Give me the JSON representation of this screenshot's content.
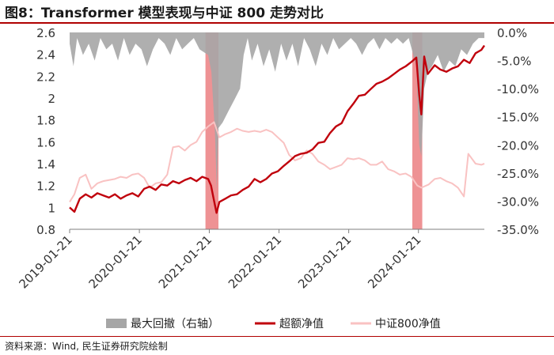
{
  "title": "图8：Transformer 模型表现与中证 800 走势对比",
  "source": "资料来源：Wind, 民生证券研究院绘制",
  "colors": {
    "excess": "#c0000c",
    "index": "#f9c2c2",
    "drawdown": "#a6a6a6",
    "highlight": "#e8686b",
    "title_rule": "#b00000"
  },
  "chart_data": {
    "type": "line",
    "y_left": {
      "ticks": [
        "2.6",
        "2.4",
        "2.2",
        "2",
        "1.8",
        "1.6",
        "1.4",
        "1.2",
        "1",
        "0.8"
      ],
      "range": [
        0.8,
        2.6
      ]
    },
    "y_right": {
      "ticks": [
        "0.0%",
        "-5.0%",
        "-10.0%",
        "-15.0%",
        "-20.0%",
        "-25.0%",
        "-30.0%",
        "-35.0%"
      ],
      "range": [
        -0.35,
        0
      ]
    },
    "x_ticks": [
      "2019-01-21",
      "2020-01-21",
      "2021-01-21",
      "2022-01-21",
      "2023-01-21",
      "2024-01-21"
    ],
    "x_range": [
      "2019-01-21",
      "2024-12-31"
    ],
    "highlight_periods": [
      [
        "2021-01-01",
        "2021-03-10"
      ],
      [
        "2023-12-20",
        "2024-02-10"
      ]
    ],
    "legend": [
      "最大回撤（右轴）",
      "超额净值",
      "中证800净值"
    ],
    "series": [
      {
        "name": "超额净值",
        "axis": "left",
        "x": [
          "2019-01-21",
          "2019-02-15",
          "2019-03-15",
          "2019-04-15",
          "2019-05-15",
          "2019-06-15",
          "2019-07-15",
          "2019-08-15",
          "2019-09-15",
          "2019-10-15",
          "2019-11-15",
          "2019-12-15",
          "2020-01-15",
          "2020-02-15",
          "2020-03-15",
          "2020-04-15",
          "2020-05-15",
          "2020-06-15",
          "2020-07-15",
          "2020-08-15",
          "2020-09-15",
          "2020-10-15",
          "2020-11-15",
          "2020-12-15",
          "2021-01-15",
          "2021-01-30",
          "2021-02-15",
          "2021-02-28",
          "2021-03-15",
          "2021-04-15",
          "2021-05-15",
          "2021-06-15",
          "2021-07-15",
          "2021-08-15",
          "2021-09-15",
          "2021-10-15",
          "2021-11-15",
          "2021-12-15",
          "2022-01-15",
          "2022-02-15",
          "2022-03-15",
          "2022-04-15",
          "2022-05-15",
          "2022-06-15",
          "2022-07-15",
          "2022-08-15",
          "2022-09-15",
          "2022-10-15",
          "2022-11-15",
          "2022-12-15",
          "2023-01-15",
          "2023-02-15",
          "2023-03-15",
          "2023-04-15",
          "2023-05-15",
          "2023-06-15",
          "2023-07-15",
          "2023-08-15",
          "2023-09-15",
          "2023-10-15",
          "2023-11-15",
          "2023-12-15",
          "2024-01-10",
          "2024-01-25",
          "2024-02-05",
          "2024-02-20",
          "2024-03-10",
          "2024-04-15",
          "2024-05-15",
          "2024-06-15",
          "2024-07-15",
          "2024-08-15",
          "2024-09-15",
          "2024-10-15",
          "2024-11-15",
          "2024-12-15",
          "2024-12-31"
        ],
        "values": [
          1.0,
          0.96,
          1.08,
          1.12,
          1.09,
          1.13,
          1.11,
          1.09,
          1.12,
          1.08,
          1.11,
          1.13,
          1.1,
          1.17,
          1.19,
          1.16,
          1.21,
          1.2,
          1.24,
          1.22,
          1.25,
          1.27,
          1.24,
          1.28,
          1.26,
          1.2,
          1.06,
          0.95,
          1.05,
          1.08,
          1.11,
          1.12,
          1.16,
          1.19,
          1.26,
          1.23,
          1.26,
          1.31,
          1.33,
          1.38,
          1.42,
          1.47,
          1.49,
          1.5,
          1.53,
          1.59,
          1.6,
          1.68,
          1.74,
          1.77,
          1.88,
          1.95,
          2.02,
          2.03,
          2.08,
          2.13,
          2.15,
          2.18,
          2.22,
          2.26,
          2.29,
          2.33,
          2.37,
          2.03,
          1.85,
          2.38,
          2.22,
          2.3,
          2.26,
          2.24,
          2.27,
          2.29,
          2.35,
          2.32,
          2.41,
          2.44,
          2.48
        ]
      },
      {
        "name": "中证800净值",
        "axis": "left",
        "x": [
          "2019-01-21",
          "2019-02-15",
          "2019-03-15",
          "2019-04-15",
          "2019-05-15",
          "2019-06-15",
          "2019-07-15",
          "2019-08-15",
          "2019-09-15",
          "2019-10-15",
          "2019-11-15",
          "2019-12-15",
          "2020-01-15",
          "2020-02-15",
          "2020-03-15",
          "2020-04-15",
          "2020-05-15",
          "2020-06-15",
          "2020-07-15",
          "2020-08-15",
          "2020-09-15",
          "2020-10-15",
          "2020-11-15",
          "2020-12-15",
          "2021-01-15",
          "2021-02-15",
          "2021-03-15",
          "2021-04-15",
          "2021-05-15",
          "2021-06-15",
          "2021-07-15",
          "2021-08-15",
          "2021-09-15",
          "2021-10-15",
          "2021-11-15",
          "2021-12-15",
          "2022-01-15",
          "2022-02-15",
          "2022-03-15",
          "2022-04-15",
          "2022-05-15",
          "2022-06-15",
          "2022-07-15",
          "2022-08-15",
          "2022-09-15",
          "2022-10-15",
          "2022-11-15",
          "2022-12-15",
          "2023-01-15",
          "2023-02-15",
          "2023-03-15",
          "2023-04-15",
          "2023-05-15",
          "2023-06-15",
          "2023-07-15",
          "2023-08-15",
          "2023-09-15",
          "2023-10-15",
          "2023-11-15",
          "2023-12-15",
          "2024-01-15",
          "2024-02-05",
          "2024-03-15",
          "2024-04-15",
          "2024-05-15",
          "2024-06-15",
          "2024-07-15",
          "2024-08-15",
          "2024-09-15",
          "2024-10-08",
          "2024-11-15",
          "2024-12-15",
          "2024-12-31"
        ],
        "values": [
          1.05,
          1.12,
          1.27,
          1.3,
          1.17,
          1.22,
          1.24,
          1.25,
          1.26,
          1.28,
          1.27,
          1.3,
          1.31,
          1.27,
          1.18,
          1.22,
          1.23,
          1.3,
          1.55,
          1.56,
          1.52,
          1.57,
          1.6,
          1.69,
          1.74,
          1.78,
          1.64,
          1.67,
          1.69,
          1.72,
          1.7,
          1.69,
          1.7,
          1.69,
          1.71,
          1.69,
          1.64,
          1.59,
          1.48,
          1.43,
          1.45,
          1.52,
          1.49,
          1.42,
          1.39,
          1.35,
          1.37,
          1.39,
          1.45,
          1.44,
          1.45,
          1.43,
          1.39,
          1.39,
          1.42,
          1.35,
          1.33,
          1.3,
          1.31,
          1.28,
          1.2,
          1.18,
          1.21,
          1.26,
          1.27,
          1.24,
          1.22,
          1.18,
          1.1,
          1.49,
          1.4,
          1.39,
          1.4
        ]
      },
      {
        "name": "最大回撤（右轴）",
        "axis": "right",
        "kind": "area",
        "x": [
          "2019-01-21",
          "2019-02-10",
          "2019-03-01",
          "2019-04-01",
          "2019-05-01",
          "2019-06-01",
          "2019-07-01",
          "2019-08-01",
          "2019-09-01",
          "2019-10-01",
          "2019-11-01",
          "2019-12-01",
          "2020-01-01",
          "2020-02-01",
          "2020-03-01",
          "2020-04-01",
          "2020-05-01",
          "2020-06-01",
          "2020-07-01",
          "2020-08-01",
          "2020-09-01",
          "2020-10-01",
          "2020-11-01",
          "2020-12-01",
          "2021-01-15",
          "2021-02-01",
          "2021-02-20",
          "2021-03-01",
          "2021-03-10",
          "2021-04-01",
          "2021-05-01",
          "2021-06-01",
          "2021-07-01",
          "2021-07-20",
          "2021-08-10",
          "2021-09-01",
          "2021-10-01",
          "2021-11-01",
          "2021-12-01",
          "2022-01-01",
          "2022-02-01",
          "2022-03-01",
          "2022-04-01",
          "2022-05-01",
          "2022-06-01",
          "2022-07-01",
          "2022-08-01",
          "2022-09-01",
          "2022-10-01",
          "2022-11-01",
          "2022-12-01",
          "2023-01-01",
          "2023-02-01",
          "2023-03-01",
          "2023-04-01",
          "2023-05-01",
          "2023-06-01",
          "2023-07-01",
          "2023-08-01",
          "2023-09-01",
          "2023-10-01",
          "2023-11-01",
          "2023-12-01",
          "2024-01-10",
          "2024-01-25",
          "2024-02-05",
          "2024-02-20",
          "2024-03-10",
          "2024-04-01",
          "2024-05-01",
          "2024-06-01",
          "2024-07-01",
          "2024-08-01",
          "2024-09-01",
          "2024-10-01",
          "2024-11-01",
          "2024-12-01",
          "2024-12-31"
        ],
        "values": [
          -0.02,
          -0.06,
          -0.01,
          -0.04,
          -0.02,
          -0.05,
          -0.01,
          -0.03,
          -0.02,
          -0.05,
          -0.01,
          -0.04,
          -0.02,
          -0.03,
          -0.06,
          -0.03,
          -0.01,
          -0.02,
          -0.04,
          -0.01,
          -0.03,
          -0.02,
          -0.01,
          -0.03,
          -0.04,
          -0.07,
          -0.18,
          -0.28,
          -0.17,
          -0.16,
          -0.14,
          -0.12,
          -0.1,
          -0.04,
          -0.01,
          -0.05,
          -0.02,
          -0.06,
          -0.03,
          -0.07,
          -0.02,
          -0.05,
          -0.02,
          -0.06,
          -0.01,
          -0.03,
          -0.06,
          -0.02,
          -0.04,
          -0.01,
          -0.03,
          -0.02,
          -0.01,
          -0.02,
          -0.04,
          -0.02,
          -0.01,
          -0.03,
          -0.01,
          -0.02,
          -0.01,
          -0.02,
          -0.01,
          -0.06,
          -0.2,
          -0.22,
          -0.1,
          -0.07,
          -0.06,
          -0.04,
          -0.07,
          -0.05,
          -0.06,
          -0.03,
          -0.04,
          -0.02,
          -0.01,
          -0.01
        ]
      }
    ]
  }
}
